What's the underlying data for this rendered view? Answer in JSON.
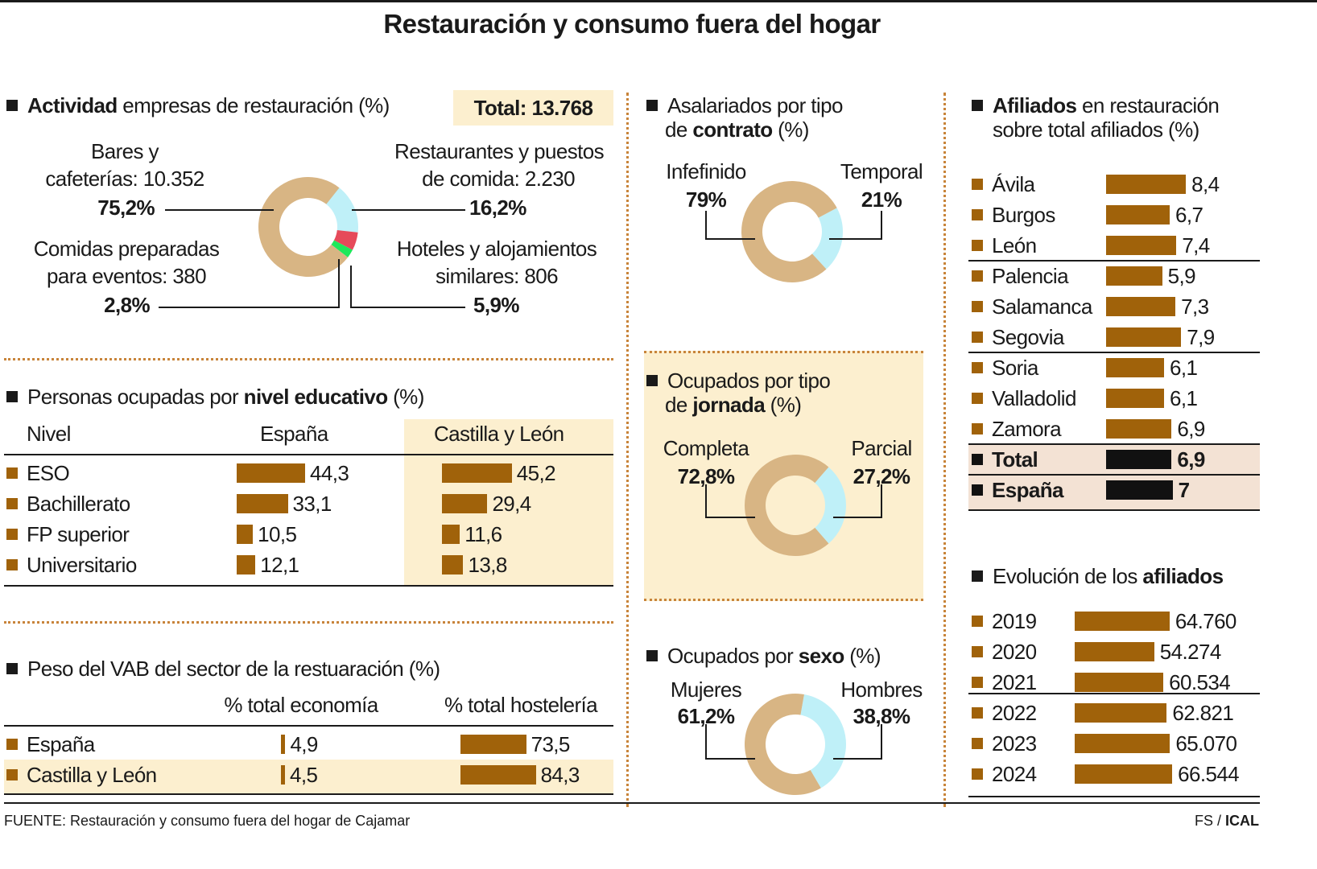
{
  "title": "Restauración y consumo fuera del hogar",
  "colors": {
    "tan": "#d8b584",
    "light_blue": "#bff0f8",
    "red": "#e64a5a",
    "green": "#1ee85a",
    "bar": "#a0620a",
    "bar_total": "#111111",
    "highlight": "#fcefcf",
    "total_row": "#f3e2d4",
    "separator": "#c8843a"
  },
  "actividad": {
    "heading": {
      "bold": "Actividad",
      "post": " empresas de restauración (%)"
    },
    "total": "Total: 13.768",
    "labels": {
      "bares": {
        "l1": "Bares y",
        "l2": "cafeterías: 10.352",
        "pct": "75,2%"
      },
      "restaurantes": {
        "l1": "Restaurantes y puestos",
        "l2": "de comida: 2.230",
        "pct": "16,2%"
      },
      "comidas": {
        "l1": "Comidas preparadas",
        "l2": "para eventos: 380",
        "pct": "2,8%"
      },
      "hoteles": {
        "l1": "Hoteles y alojamientos",
        "l2": "similares: 806",
        "pct": "5,9%"
      }
    }
  },
  "educacion": {
    "heading": {
      "pre": "Personas ocupadas por ",
      "bold": "nivel educativo",
      "post": " (%)"
    },
    "columns": [
      "Nivel",
      "España",
      "Castilla y León"
    ]
  },
  "vab": {
    "heading": {
      "pre": "Peso del VAB del sector de la restuaración (%)"
    },
    "columns": [
      "% total economía",
      "% total hostelería"
    ]
  },
  "contrato": {
    "h1": "Asalariados por tipo",
    "h2pre": "de ",
    "h2bold": "contrato",
    "h2post": " (%)",
    "left": "Infefinido",
    "left_pct": "79%",
    "right": "Temporal",
    "right_pct": "21%"
  },
  "jornada": {
    "h1": "Ocupados por tipo",
    "h2pre": "de ",
    "h2bold": "jornada",
    "h2post": " (%)",
    "left": "Completa",
    "left_pct": "72,8%",
    "right": "Parcial",
    "right_pct": "27,2%"
  },
  "sexo": {
    "pre": "Ocupados por ",
    "bold": "sexo",
    "post": " (%)",
    "left": "Mujeres",
    "left_pct": "61,2%",
    "right": "Hombres",
    "right_pct": "38,8%"
  },
  "afiliados": {
    "h1bold": "Afiliados",
    "h1post": " en restauración",
    "h2": "sobre total afiliados (%)"
  },
  "evolucion": {
    "pre": "Evolución de los ",
    "bold": "afiliados"
  },
  "chart_data": [
    {
      "type": "pie",
      "id": "actividad",
      "categories": [
        "Bares y cafeterías",
        "Restaurantes y puestos de comida",
        "Hoteles y alojamientos similares",
        "Comidas preparadas para eventos"
      ],
      "counts": [
        10352,
        2230,
        806,
        380
      ],
      "values": [
        75.2,
        16.2,
        5.9,
        2.8
      ],
      "colors": [
        "#d8b584",
        "#bff0f8",
        "#e64a5a",
        "#1ee85a"
      ],
      "total": 13768
    },
    {
      "type": "bar",
      "id": "educacion",
      "categories": [
        "ESO",
        "Bachillerato",
        "FP superior",
        "Universitario"
      ],
      "series": [
        {
          "name": "España",
          "values": [
            44.3,
            33.1,
            10.5,
            12.1
          ],
          "labels": [
            "44,3",
            "33,1",
            "10,5",
            "12,1"
          ]
        },
        {
          "name": "Castilla y León",
          "values": [
            45.2,
            29.4,
            11.6,
            13.8
          ],
          "labels": [
            "45,2",
            "29,4",
            "11,6",
            "13,8"
          ]
        }
      ]
    },
    {
      "type": "bar",
      "id": "vab",
      "categories": [
        "España",
        "Castilla y León"
      ],
      "series": [
        {
          "name": "% total economía",
          "values": [
            4.9,
            4.5
          ],
          "labels": [
            "4,9",
            "4,5"
          ]
        },
        {
          "name": "% total hostelería",
          "values": [
            73.5,
            84.3
          ],
          "labels": [
            "73,5",
            "84,3"
          ]
        }
      ]
    },
    {
      "type": "pie",
      "id": "contrato",
      "categories": [
        "Infefinido",
        "Temporal"
      ],
      "values": [
        79,
        21
      ],
      "colors": [
        "#d8b584",
        "#bff0f8"
      ]
    },
    {
      "type": "pie",
      "id": "jornada",
      "categories": [
        "Completa",
        "Parcial"
      ],
      "values": [
        72.8,
        27.2
      ],
      "colors": [
        "#d8b584",
        "#bff0f8"
      ]
    },
    {
      "type": "pie",
      "id": "sexo",
      "categories": [
        "Mujeres",
        "Hombres"
      ],
      "values": [
        61.2,
        38.8
      ],
      "colors": [
        "#d8b584",
        "#bff0f8"
      ]
    },
    {
      "type": "bar",
      "id": "afiliados",
      "categories": [
        "Ávila",
        "Burgos",
        "León",
        "Palencia",
        "Salamanca",
        "Segovia",
        "Soria",
        "Valladolid",
        "Zamora",
        "Total",
        "España"
      ],
      "values": [
        8.4,
        6.7,
        7.4,
        5.9,
        7.3,
        7.9,
        6.1,
        6.1,
        6.9,
        6.9,
        7
      ],
      "labels": [
        "8,4",
        "6,7",
        "7,4",
        "5,9",
        "7,3",
        "7,9",
        "6,1",
        "6,1",
        "6,9",
        "6,9",
        "7"
      ]
    },
    {
      "type": "bar",
      "id": "evolucion",
      "categories": [
        "2019",
        "2020",
        "2021",
        "2022",
        "2023",
        "2024"
      ],
      "values": [
        64760,
        54274,
        60534,
        62821,
        65070,
        66544
      ],
      "labels": [
        "64.760",
        "54.274",
        "60.534",
        "62.821",
        "65.070",
        "66.544"
      ]
    }
  ],
  "footer": {
    "source": "FUENTE: Restauración y consumo fuera del hogar de Cajamar",
    "credit_pre": "FS / ",
    "credit_bold": "ICAL"
  }
}
